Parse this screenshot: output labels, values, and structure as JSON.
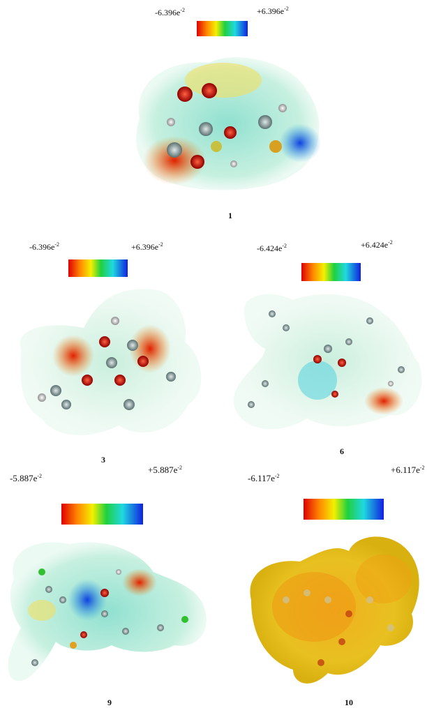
{
  "panels": [
    {
      "min": {
        "base": "-6.396e",
        "exp": "-2"
      },
      "max": {
        "base": "+6.396e",
        "exp": "-2"
      },
      "label": "1"
    },
    {
      "min": {
        "base": "-6.396e",
        "exp": "-2"
      },
      "max": {
        "base": "+6.396e",
        "exp": "-2"
      },
      "label": "3"
    },
    {
      "min": {
        "base": "-6.424e",
        "exp": "-2"
      },
      "max": {
        "base": "+6.424e",
        "exp": "-2"
      },
      "label": "6"
    },
    {
      "min": {
        "base": "-5.887e",
        "exp": "-2"
      },
      "max": {
        "base": "+5.887e",
        "exp": "-2"
      },
      "label": "9"
    },
    {
      "min": {
        "base": "-6.117e",
        "exp": "-2"
      },
      "max": {
        "base": "+6.117e",
        "exp": "-2"
      },
      "label": "10"
    }
  ]
}
